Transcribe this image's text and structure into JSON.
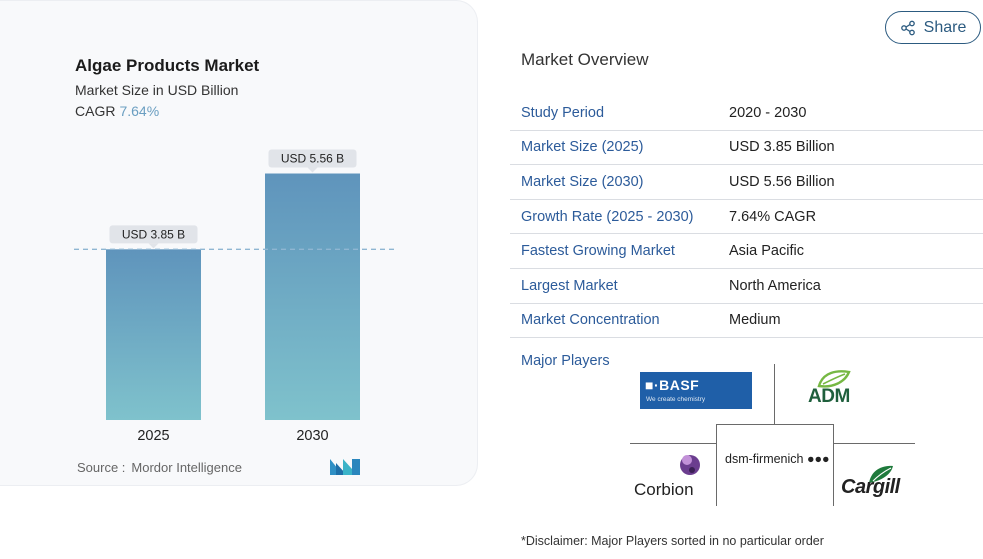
{
  "chart": {
    "title": "Algae Products Market",
    "subtitle": "Market Size in USD Billion",
    "cagr_label": "CAGR",
    "cagr_value": "7.64%",
    "source_label": "Source :",
    "source_value": "Mordor Intelligence"
  },
  "chart_data": {
    "type": "bar",
    "title": "Algae Products Market",
    "subtitle": "Market Size in USD Billion",
    "categories": [
      "2025",
      "2030"
    ],
    "values": [
      3.85,
      5.56
    ],
    "data_labels": [
      "USD 3.85 B",
      "USD 5.56 B"
    ],
    "ylim": [
      0,
      6.0
    ],
    "reference_line_value": 3.85,
    "grid": false,
    "colors": {
      "bar_top": "#5f94bc",
      "bar_bottom": "#7fc2cc",
      "label_bg": "#e1e4e9",
      "ref_line": "#8fb6d2"
    }
  },
  "share": {
    "label": "Share",
    "icon": "share-icon"
  },
  "overview": {
    "title": "Market Overview",
    "rows": [
      {
        "label": "Study Period",
        "value": "2020 - 2030"
      },
      {
        "label": "Market Size (2025)",
        "value": "USD 3.85 Billion"
      },
      {
        "label": "Market Size (2030)",
        "value": "USD 5.56 Billion"
      },
      {
        "label": "Growth Rate (2025 - 2030)",
        "value": "7.64% CAGR"
      },
      {
        "label": "Fastest Growing Market",
        "value": "Asia Pacific"
      },
      {
        "label": "Largest Market",
        "value": "North America"
      },
      {
        "label": "Market Concentration",
        "value": "Medium"
      }
    ]
  },
  "players": {
    "label": "Major Players",
    "logos": {
      "basf": "■·BASF",
      "basf_tag": "We create chemistry",
      "adm": "ADM",
      "dsm": "dsm-firmenich ●●●",
      "corbion": "Corbion",
      "cargill": "Cargill"
    }
  },
  "disclaimer": "*Disclaimer: Major Players sorted in no particular order"
}
